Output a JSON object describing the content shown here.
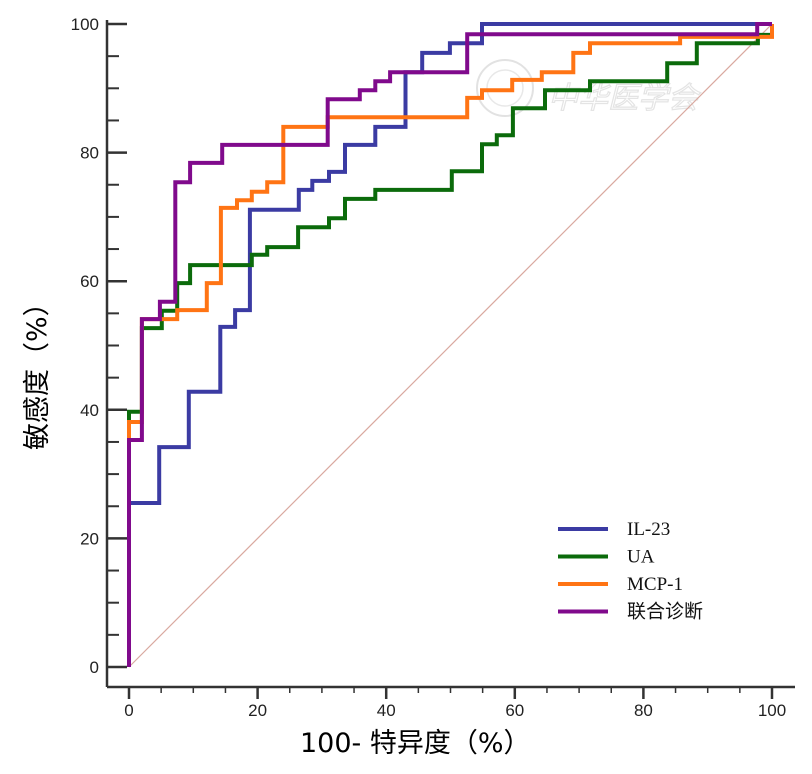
{
  "chart_data": {
    "type": "line",
    "title": "",
    "xlabel": "100- 特异度（%）",
    "ylabel": "敏感度（%）",
    "xlim": [
      0,
      100
    ],
    "ylim": [
      0,
      100
    ],
    "xticks": [
      0,
      20,
      40,
      60,
      80,
      100
    ],
    "yticks": [
      0,
      20,
      40,
      60,
      80,
      100
    ],
    "xtick_labels": [
      "0",
      "20",
      "40",
      "60",
      "80",
      "100"
    ],
    "ytick_labels": [
      "0",
      "20",
      "40",
      "60",
      "80",
      "100"
    ],
    "grid": false,
    "legend_position": "bottom-right",
    "reference_line": {
      "from": [
        0,
        0
      ],
      "to": [
        100,
        100
      ],
      "color": "#d9a9a0"
    },
    "watermark": "中华医学会",
    "series": [
      {
        "name": "IL-23",
        "color": "#3b3ba3",
        "step": true,
        "points": [
          [
            0,
            0
          ],
          [
            0,
            25.5
          ],
          [
            4.7,
            25.5
          ],
          [
            4.7,
            34.2
          ],
          [
            9.3,
            34.2
          ],
          [
            9.3,
            42.8
          ],
          [
            14.2,
            42.8
          ],
          [
            14.2,
            52.9
          ],
          [
            16.5,
            52.9
          ],
          [
            16.5,
            55.5
          ],
          [
            18.8,
            55.5
          ],
          [
            18.8,
            71.1
          ],
          [
            26.4,
            71.1
          ],
          [
            26.4,
            74.2
          ],
          [
            28.5,
            74.2
          ],
          [
            28.5,
            75.6
          ],
          [
            31.1,
            75.6
          ],
          [
            31.1,
            77.0
          ],
          [
            33.6,
            77.0
          ],
          [
            33.6,
            81.2
          ],
          [
            38.3,
            81.2
          ],
          [
            38.3,
            84.0
          ],
          [
            43.0,
            84.0
          ],
          [
            43.0,
            92.5
          ],
          [
            45.6,
            92.5
          ],
          [
            45.6,
            95.5
          ],
          [
            49.9,
            95.5
          ],
          [
            49.9,
            97.0
          ],
          [
            54.9,
            97.0
          ],
          [
            54.9,
            100
          ],
          [
            100,
            100
          ]
        ]
      },
      {
        "name": "UA",
        "color": "#0b6b0b",
        "step": true,
        "points": [
          [
            0,
            0
          ],
          [
            0,
            39.7
          ],
          [
            2,
            39.7
          ],
          [
            2,
            52.7
          ],
          [
            5.1,
            52.7
          ],
          [
            5.1,
            55.4
          ],
          [
            7.5,
            55.4
          ],
          [
            7.5,
            59.7
          ],
          [
            9.5,
            59.7
          ],
          [
            9.5,
            62.5
          ],
          [
            19.1,
            62.5
          ],
          [
            19.1,
            64.1
          ],
          [
            21.5,
            64.1
          ],
          [
            21.5,
            65.3
          ],
          [
            26.3,
            65.3
          ],
          [
            26.3,
            68.4
          ],
          [
            31.1,
            68.4
          ],
          [
            31.1,
            69.8
          ],
          [
            33.6,
            69.8
          ],
          [
            33.6,
            72.8
          ],
          [
            38.3,
            72.8
          ],
          [
            38.3,
            74.2
          ],
          [
            50.2,
            74.2
          ],
          [
            50.2,
            77.1
          ],
          [
            54.9,
            77.1
          ],
          [
            54.9,
            81.3
          ],
          [
            57.2,
            81.3
          ],
          [
            57.2,
            82.7
          ],
          [
            59.7,
            82.7
          ],
          [
            59.7,
            86.9
          ],
          [
            64.7,
            86.9
          ],
          [
            64.7,
            89.7
          ],
          [
            71.7,
            89.7
          ],
          [
            71.7,
            91.1
          ],
          [
            83.7,
            91.1
          ],
          [
            83.7,
            93.9
          ],
          [
            88.3,
            93.9
          ],
          [
            88.3,
            97
          ],
          [
            97.8,
            97
          ],
          [
            97.8,
            98.3
          ],
          [
            100,
            98.3
          ],
          [
            100,
            100
          ]
        ]
      },
      {
        "name": "MCP-1",
        "color": "#ff7414",
        "step": true,
        "points": [
          [
            0,
            0
          ],
          [
            0,
            38.1
          ],
          [
            2,
            38.1
          ],
          [
            2,
            54.1
          ],
          [
            7.5,
            54.1
          ],
          [
            7.5,
            55.5
          ],
          [
            12.1,
            55.5
          ],
          [
            12.1,
            59.7
          ],
          [
            14.3,
            59.7
          ],
          [
            14.3,
            71.4
          ],
          [
            16.8,
            71.4
          ],
          [
            16.8,
            72.6
          ],
          [
            19.1,
            72.6
          ],
          [
            19.1,
            73.9
          ],
          [
            21.5,
            73.9
          ],
          [
            21.5,
            75.4
          ],
          [
            24,
            75.4
          ],
          [
            24,
            84
          ],
          [
            30.9,
            84
          ],
          [
            30.9,
            85.5
          ],
          [
            52.6,
            85.5
          ],
          [
            52.6,
            88.5
          ],
          [
            54.9,
            88.5
          ],
          [
            54.9,
            89.7
          ],
          [
            59.6,
            89.7
          ],
          [
            59.6,
            91.3
          ],
          [
            64.2,
            91.3
          ],
          [
            64.2,
            92.5
          ],
          [
            69.1,
            92.5
          ],
          [
            69.1,
            95.5
          ],
          [
            71.7,
            95.5
          ],
          [
            71.7,
            97
          ],
          [
            85.7,
            97
          ],
          [
            85.7,
            98
          ],
          [
            100,
            98
          ],
          [
            100,
            100
          ]
        ]
      },
      {
        "name": "联合诊断",
        "color": "#800a8c",
        "step": true,
        "points": [
          [
            0,
            0
          ],
          [
            0,
            35.3
          ],
          [
            2,
            35.3
          ],
          [
            2,
            54.1
          ],
          [
            4.8,
            54.1
          ],
          [
            4.8,
            56.8
          ],
          [
            7.2,
            56.8
          ],
          [
            7.2,
            75.4
          ],
          [
            9.5,
            75.4
          ],
          [
            9.5,
            78.4
          ],
          [
            14.5,
            78.4
          ],
          [
            14.5,
            81.2
          ],
          [
            30.9,
            81.2
          ],
          [
            30.9,
            88.3
          ],
          [
            35.9,
            88.3
          ],
          [
            35.9,
            89.7
          ],
          [
            38.3,
            89.7
          ],
          [
            38.3,
            91.1
          ],
          [
            40.6,
            91.1
          ],
          [
            40.6,
            92.5
          ],
          [
            52.6,
            92.5
          ],
          [
            52.6,
            98.4
          ],
          [
            97.7,
            98.4
          ],
          [
            97.7,
            100
          ],
          [
            100,
            100
          ]
        ]
      }
    ]
  }
}
